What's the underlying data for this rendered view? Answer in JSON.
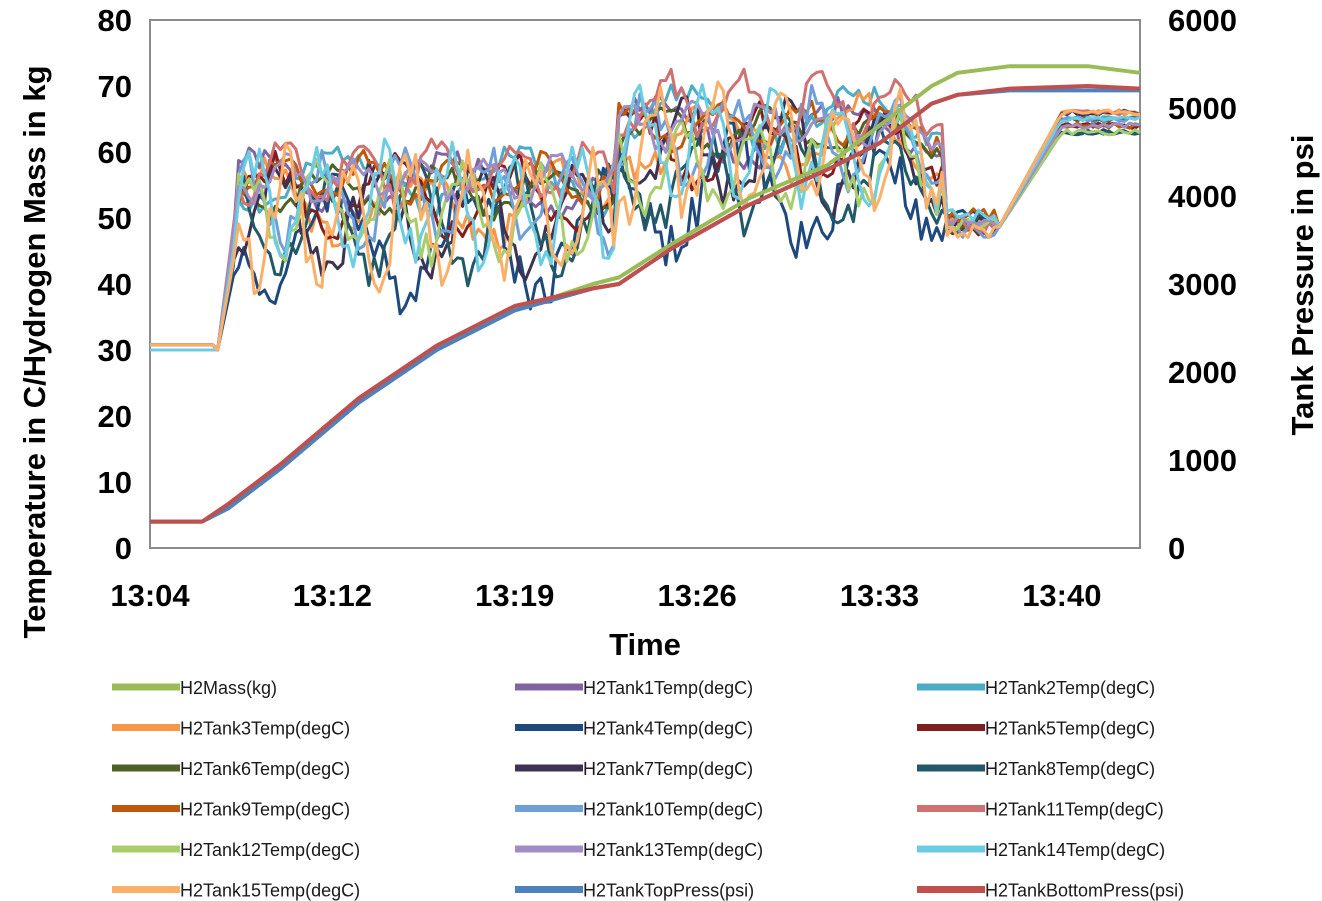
{
  "chart_data": {
    "type": "line",
    "title": "",
    "xlabel": "Time",
    "ylabel": "Temperature in C/Hydrogen Mass in kg",
    "y2label": "Tank Pressure in psi",
    "ylim": [
      0,
      80
    ],
    "y2lim": [
      0,
      6000
    ],
    "xlim": [
      "13:04",
      "13:42"
    ],
    "yticks": [
      "0",
      "10",
      "20",
      "30",
      "40",
      "50",
      "60",
      "70",
      "80"
    ],
    "y2ticks": [
      "0",
      "1000",
      "2000",
      "3000",
      "4000",
      "5000",
      "6000"
    ],
    "xticks": [
      {
        "label": "13:04",
        "t": "13:04"
      },
      {
        "label": "13:12",
        "t": "13:11"
      },
      {
        "label": "13:19",
        "t": "13:18"
      },
      {
        "label": "13:26",
        "t": "13:25"
      },
      {
        "label": "13:33",
        "t": "13:32"
      },
      {
        "label": "13:40",
        "t": "13:39"
      }
    ],
    "grid": false,
    "legend_position": "bottom",
    "series": [
      {
        "name": "H2Mass(kg)",
        "axis": "left",
        "color": "#9bbb59",
        "kind": "mass",
        "x": [
          "13:04",
          "13:06",
          "13:07",
          "13:09",
          "13:12",
          "13:15",
          "13:18",
          "13:21",
          "13:22",
          "13:24",
          "13:27",
          "13:30",
          "13:32",
          "13:34",
          "13:35",
          "13:37",
          "13:40",
          "13:42"
        ],
        "y": [
          4,
          4,
          6,
          12,
          22,
          30,
          36,
          40,
          41,
          46,
          53,
          58,
          64,
          70,
          72,
          73,
          73,
          72
        ]
      },
      {
        "name": "H2Tank1Temp(degC)",
        "axis": "left",
        "color": "#8064a2",
        "kind": "temp",
        "base": 55,
        "amp": 4,
        "seed": 1
      },
      {
        "name": "H2Tank2Temp(degC)",
        "axis": "left",
        "color": "#4bacc6",
        "kind": "temp",
        "base": 56,
        "amp": 4,
        "seed": 2
      },
      {
        "name": "H2Tank3Temp(degC)",
        "axis": "left",
        "color": "#f79646",
        "kind": "temp",
        "base": 52,
        "amp": 5,
        "seed": 3
      },
      {
        "name": "H2Tank4Temp(degC)",
        "axis": "left",
        "color": "#1f497d",
        "kind": "temp",
        "base": 47,
        "amp": 8,
        "seed": 4
      },
      {
        "name": "H2Tank5Temp(degC)",
        "axis": "left",
        "color": "#7f1f1f",
        "kind": "temp",
        "base": 53,
        "amp": 5,
        "seed": 5
      },
      {
        "name": "H2Tank6Temp(degC)",
        "axis": "left",
        "color": "#4f6228",
        "kind": "temp",
        "base": 54,
        "amp": 3,
        "seed": 6
      },
      {
        "name": "H2Tank7Temp(degC)",
        "axis": "left",
        "color": "#3f3151",
        "kind": "temp",
        "base": 50,
        "amp": 7,
        "seed": 7
      },
      {
        "name": "H2Tank8Temp(degC)",
        "axis": "left",
        "color": "#215968",
        "kind": "temp",
        "base": 49,
        "amp": 7,
        "seed": 8
      },
      {
        "name": "H2Tank9Temp(degC)",
        "axis": "left",
        "color": "#c0580c",
        "kind": "temp",
        "base": 56,
        "amp": 3,
        "seed": 9
      },
      {
        "name": "H2Tank10Temp(degC)",
        "axis": "left",
        "color": "#6f9fd8",
        "kind": "temp",
        "base": 53,
        "amp": 6,
        "seed": 10
      },
      {
        "name": "H2Tank11Temp(degC)",
        "axis": "left",
        "color": "#d07070",
        "kind": "temp",
        "base": 57,
        "amp": 4,
        "seed": 11
      },
      {
        "name": "H2Tank12Temp(degC)",
        "axis": "left",
        "color": "#a9cd6d",
        "kind": "temp",
        "base": 51,
        "amp": 6,
        "seed": 12
      },
      {
        "name": "H2Tank13Temp(degC)",
        "axis": "left",
        "color": "#a08dc4",
        "kind": "temp",
        "base": 56,
        "amp": 3,
        "seed": 13
      },
      {
        "name": "H2Tank14Temp(degC)",
        "axis": "left",
        "color": "#6ccde2",
        "kind": "temp",
        "base": 52,
        "amp": 7,
        "seed": 14
      },
      {
        "name": "H2Tank15Temp(degC)",
        "axis": "left",
        "color": "#fbb06a",
        "kind": "temp",
        "base": 50,
        "amp": 8,
        "seed": 15
      },
      {
        "name": "H2TankTopPress(psi)",
        "axis": "right",
        "color": "#4f81bd",
        "kind": "press",
        "x": [
          "13:04",
          "13:06",
          "13:07",
          "13:09",
          "13:12",
          "13:15",
          "13:18",
          "13:21",
          "13:22",
          "13:24",
          "13:27",
          "13:30",
          "13:32",
          "13:34",
          "13:35",
          "13:37",
          "13:40",
          "13:42"
        ],
        "y": [
          300,
          300,
          450,
          900,
          1650,
          2250,
          2700,
          2950,
          3000,
          3400,
          3900,
          4300,
          4600,
          5050,
          5150,
          5200,
          5200,
          5200
        ]
      },
      {
        "name": "H2TankBottomPress(psi)",
        "axis": "right",
        "color": "#c0504d",
        "kind": "press",
        "x": [
          "13:04",
          "13:06",
          "13:07",
          "13:09",
          "13:12",
          "13:15",
          "13:18",
          "13:21",
          "13:22",
          "13:24",
          "13:27",
          "13:30",
          "13:32",
          "13:34",
          "13:35",
          "13:37",
          "13:40",
          "13:42"
        ],
        "y": [
          300,
          300,
          500,
          950,
          1700,
          2300,
          2750,
          2950,
          3000,
          3400,
          3900,
          4300,
          4600,
          5050,
          5150,
          5220,
          5250,
          5220
        ]
      }
    ]
  }
}
